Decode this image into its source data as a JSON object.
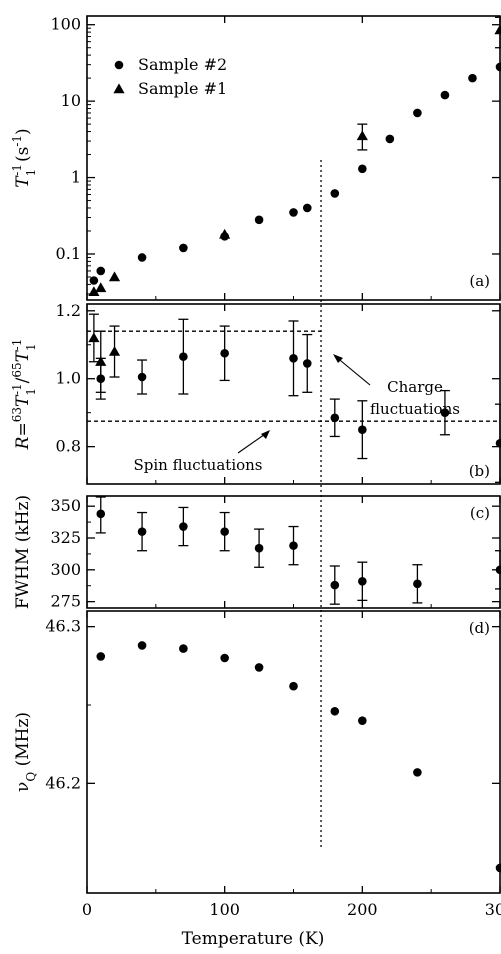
{
  "chart_data": {
    "type": "scatter",
    "shared_xlabel": "Temperature (K)",
    "shared_xlim": [
      0,
      300
    ],
    "shared_xticks": [
      "0",
      "100",
      "200",
      "300"
    ],
    "vertical_marker_x": 170,
    "panels": [
      {
        "id": "a",
        "panel_label": "(a)",
        "ylabel": "T1^-1 (s^-1)",
        "ylabel_main": "T",
        "ylabel_sub": "1",
        "ylabel_sup": "-1",
        "ylabel_unit_open": "(s",
        "ylabel_unit_sup": "-1",
        "ylabel_unit_close": ")",
        "yscale": "log",
        "ylim": [
          0.025,
          130
        ],
        "yticks": [
          "0.1",
          "1",
          "10",
          "100"
        ],
        "series": [
          {
            "name": "Sample #2",
            "marker": "circle",
            "x": [
              5,
              10,
              40,
              70,
              100,
              125,
              150,
              160,
              180,
              200,
              220,
              240,
              260,
              280,
              300
            ],
            "y": [
              0.045,
              0.06,
              0.09,
              0.12,
              0.17,
              0.28,
              0.35,
              0.4,
              0.62,
              1.3,
              3.2,
              7,
              12,
              20,
              28
            ]
          },
          {
            "name": "Sample #1",
            "marker": "triangle",
            "x": [
              5,
              10,
              20,
              100,
              200,
              300
            ],
            "y": [
              0.032,
              0.036,
              0.05,
              0.18,
              3.5,
              85
            ],
            "err_low": [
              null,
              null,
              null,
              null,
              2.3,
              50
            ],
            "err_high": [
              null,
              null,
              null,
              null,
              5.0,
              125
            ]
          }
        ]
      },
      {
        "id": "b",
        "panel_label": "(b)",
        "ylabel": "R=63T1^-1/65T1^-1",
        "ylim": [
          0.69,
          1.22
        ],
        "yticks": [
          "0.8",
          "1.0",
          "1.2"
        ],
        "series": [
          {
            "name": "Sample #2",
            "marker": "circle",
            "x": [
              10,
              40,
              70,
              100,
              150,
              160,
              180,
              200,
              260,
              300
            ],
            "y": [
              1.0,
              1.005,
              1.065,
              1.075,
              1.06,
              1.045,
              0.885,
              0.85,
              0.9,
              0.81
            ],
            "err": [
              0.06,
              0.05,
              0.11,
              0.08,
              0.11,
              0.085,
              0.055,
              0.085,
              0.065,
              0.115
            ]
          },
          {
            "name": "Sample #1",
            "marker": "triangle",
            "x": [
              5,
              10,
              20
            ],
            "y": [
              1.12,
              1.05,
              1.08
            ],
            "err": [
              0.07,
              0.09,
              0.075
            ]
          }
        ],
        "reference_lines": [
          {
            "y": 1.14,
            "x_start": 0,
            "x_end": 170,
            "label": "Charge fluctuations"
          },
          {
            "y": 0.875,
            "x_start": 0,
            "x_end": 300,
            "label": "Spin fluctuations"
          }
        ],
        "annotations": {
          "charge_line1": "Charge",
          "charge_line2": "fluctuations",
          "spin": "Spin fluctuations"
        }
      },
      {
        "id": "c",
        "panel_label": "(c)",
        "ylabel": "FWHM (kHz)",
        "ylim": [
          270,
          358
        ],
        "yticks": [
          "275",
          "300",
          "325",
          "350"
        ],
        "series": [
          {
            "name": "Sample #2",
            "marker": "circle",
            "x": [
              10,
              40,
              70,
              100,
              125,
              150,
              180,
              200,
              240,
              300
            ],
            "y": [
              344,
              330,
              334,
              330,
              317,
              319,
              288,
              291,
              289,
              300
            ],
            "err": [
              15,
              15,
              15,
              15,
              15,
              15,
              15,
              15,
              15,
              15
            ]
          }
        ]
      },
      {
        "id": "d",
        "panel_label": "(d)",
        "ylabel": "νQ (MHz)",
        "ylabel_main": "ν",
        "ylabel_sub": "Q",
        "ylabel_unit": " (MHz)",
        "ylim": [
          46.13,
          46.31
        ],
        "yticks": [
          "46.2",
          "46.3"
        ],
        "series": [
          {
            "name": "Sample #2",
            "marker": "circle",
            "x": [
              10,
              40,
              70,
              100,
              125,
              150,
              180,
              200,
              240,
              300
            ],
            "y": [
              46.281,
              46.288,
              46.286,
              46.28,
              46.274,
              46.262,
              46.246,
              46.24,
              46.207,
              46.146
            ]
          }
        ]
      }
    ],
    "legend": {
      "placement": "top-left of panel (a)",
      "entries": [
        {
          "label": "Sample #2",
          "marker": "circle"
        },
        {
          "label": "Sample #1",
          "marker": "triangle"
        }
      ]
    }
  }
}
